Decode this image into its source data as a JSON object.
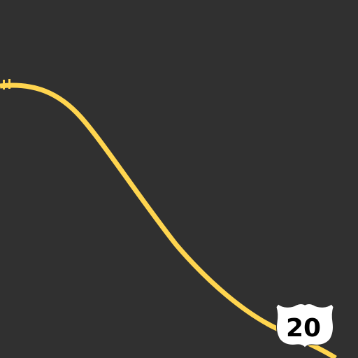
{
  "map": {
    "background_color": "#303030",
    "road": {
      "name": "US Route 20",
      "type": "us-highway",
      "color": "#ffd54f"
    },
    "shield": {
      "route_number": "20",
      "fill": "#ffffff",
      "text_color": "#000000",
      "icon": "us-highway-shield-icon"
    }
  }
}
